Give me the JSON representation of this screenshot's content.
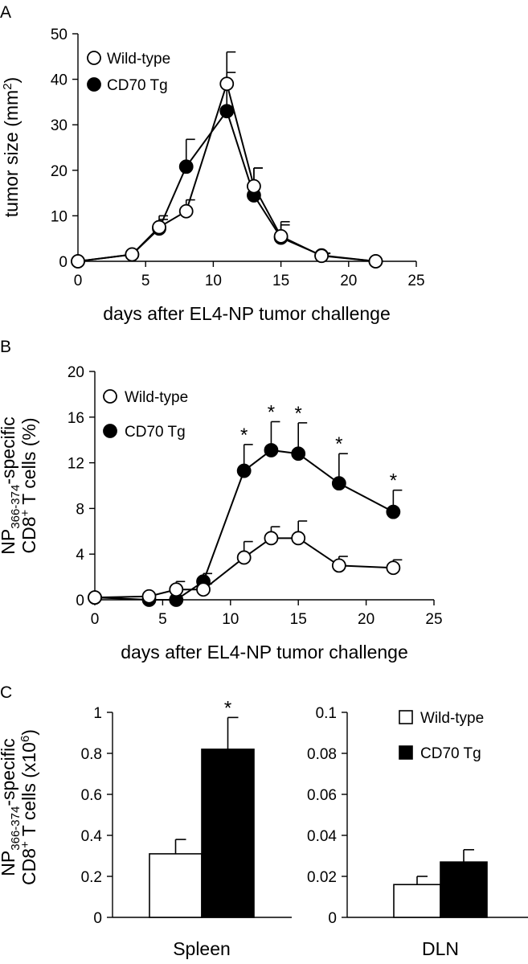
{
  "chart_data": [
    {
      "panel": "A",
      "type": "line",
      "xlabel": "days after EL4-NP tumor challenge",
      "ylabel": {
        "main": "tumor size (mm",
        "sup": "2",
        "end": ")"
      },
      "xlim": [
        0,
        25
      ],
      "ylim": [
        0,
        50
      ],
      "xticks": [
        0,
        5,
        10,
        15,
        20,
        25
      ],
      "yticks": [
        0,
        10,
        20,
        30,
        40,
        50
      ],
      "x": [
        0,
        4,
        6,
        8,
        11,
        13,
        15,
        18,
        22
      ],
      "series": [
        {
          "name": "Wild-type",
          "marker": "open",
          "values": [
            0,
            1.5,
            7.5,
            11,
            39,
            16.5,
            5.5,
            1.2,
            0
          ],
          "err": [
            0,
            0,
            2.5,
            2.5,
            7,
            4,
            2.5,
            0.5,
            0
          ]
        },
        {
          "name": "CD70 Tg",
          "marker": "filled",
          "values": [
            0,
            1.5,
            7.2,
            20.8,
            33,
            14.5,
            5.2,
            1.3,
            0
          ],
          "err": [
            0,
            0,
            2.0,
            6,
            8.5,
            6,
            3.5,
            0.5,
            0
          ]
        }
      ],
      "legend_position": "top-left",
      "grid": false
    },
    {
      "panel": "B",
      "type": "line",
      "xlabel": "days after EL4-NP tumor challenge",
      "ylabel": {
        "line1_main": "NP",
        "line1_sub": "366-374",
        "line1_end": "-specific",
        "line2_main": "CD8",
        "line2_sup": "+",
        "line2_end": " T cells (%)"
      },
      "xlim": [
        0,
        25
      ],
      "ylim": [
        0,
        20
      ],
      "xticks": [
        0,
        5,
        10,
        15,
        20,
        25
      ],
      "yticks": [
        0,
        4,
        8,
        12,
        16,
        20
      ],
      "x": [
        0,
        4,
        6,
        8,
        11,
        13,
        15,
        18,
        22
      ],
      "series": [
        {
          "name": "Wild-type",
          "marker": "open",
          "values": [
            0.2,
            0.3,
            0.9,
            0.9,
            3.7,
            5.4,
            5.4,
            3.0,
            2.8
          ],
          "err": [
            0,
            0,
            0.7,
            0.5,
            1.4,
            1.0,
            1.5,
            0.8,
            0.7
          ]
        },
        {
          "name": "CD70 Tg",
          "marker": "filled",
          "values": [
            0.2,
            0,
            0,
            1.6,
            11.3,
            13.1,
            12.8,
            10.2,
            7.7
          ],
          "err": [
            0,
            0,
            0,
            0.7,
            2.3,
            2.5,
            2.7,
            2.6,
            1.9
          ]
        }
      ],
      "significance": {
        "symbol": "*",
        "x": [
          11,
          13,
          15,
          18,
          22
        ]
      },
      "legend_position": "top-left",
      "grid": false
    },
    {
      "panel": "C",
      "type": "bar",
      "ylabel": {
        "line1_main": "NP",
        "line1_sub": "366-374",
        "line1_end": "-specific",
        "line2_main": "CD8",
        "line2_sup": "+",
        "line2_mid": " T cells (x10",
        "line2_sup2": "6",
        "line2_end": ")"
      },
      "subplots": [
        {
          "category": "Spleen",
          "ylim": [
            0,
            1
          ],
          "yticks": [
            "0",
            "0.2",
            "0.4",
            "0.6",
            "0.8",
            "1"
          ],
          "ytick_values": [
            0,
            0.2,
            0.4,
            0.6,
            0.8,
            1
          ],
          "values": {
            "Wild-type": 0.31,
            "CD70 Tg": 0.82
          },
          "err": {
            "Wild-type": 0.07,
            "CD70 Tg": 0.155
          },
          "significance": {
            "series": "CD70 Tg",
            "symbol": "*"
          }
        },
        {
          "category": "DLN",
          "ylim": [
            0,
            0.1
          ],
          "yticks": [
            "0",
            "0.02",
            "0.04",
            "0.06",
            "0.08",
            "0.1"
          ],
          "ytick_values": [
            0,
            0.02,
            0.04,
            0.06,
            0.08,
            0.1
          ],
          "values": {
            "Wild-type": 0.016,
            "CD70 Tg": 0.027
          },
          "err": {
            "Wild-type": 0.004,
            "CD70 Tg": 0.006
          }
        }
      ],
      "series": [
        {
          "name": "Wild-type",
          "fill": "#ffffff"
        },
        {
          "name": "CD70 Tg",
          "fill": "#000000"
        }
      ],
      "legend_position": "top-right"
    }
  ]
}
